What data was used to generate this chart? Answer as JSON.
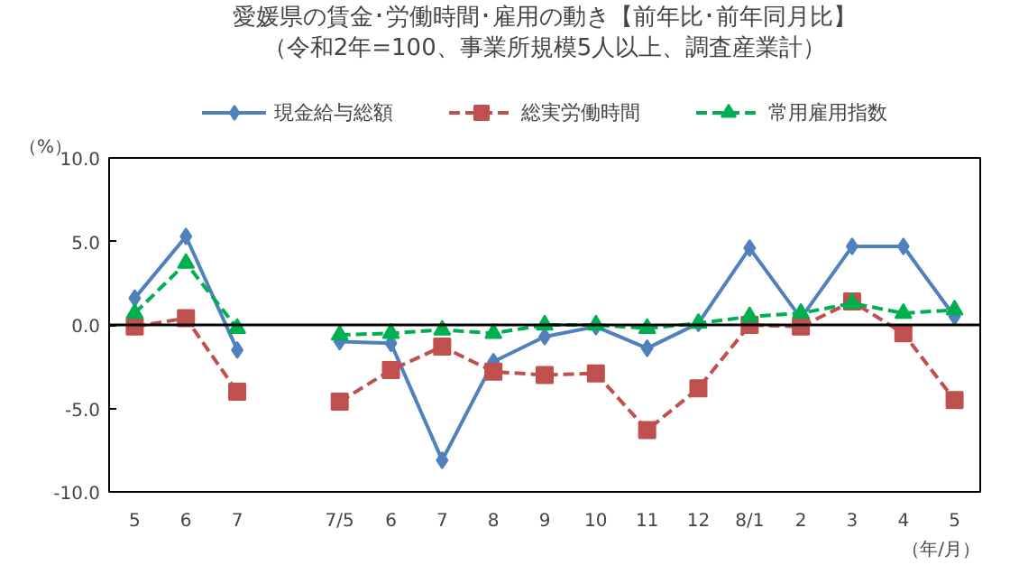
{
  "chart_data": {
    "type": "line",
    "title": "愛媛県の賃金･労働時間･雇用の動き【前年比･前年同月比】",
    "subtitle": "（令和2年=100、事業所規模5人以上、調査産業計）",
    "ylabel": "（%）",
    "xlabel": "（年/月）",
    "categories": [
      "5",
      "6",
      "7",
      null,
      "7/5",
      "6",
      "7",
      "8",
      "9",
      "10",
      "11",
      "12",
      "8/1",
      "2",
      "3",
      "4",
      "5"
    ],
    "series": [
      {
        "name": "現金給与総額",
        "color": "#4f81bd",
        "marker": "diamond",
        "line_style": "solid",
        "values": [
          1.6,
          5.3,
          -1.5,
          null,
          -1.0,
          -1.1,
          -8.1,
          -2.2,
          -0.7,
          -0.1,
          -1.4,
          0.1,
          4.6,
          0.4,
          4.7,
          4.7,
          0.5
        ]
      },
      {
        "name": "総実労働時間",
        "color": "#c0504d",
        "marker": "square",
        "line_style": "dashed",
        "values": [
          -0.1,
          0.4,
          -4.0,
          null,
          -4.6,
          -2.7,
          -1.3,
          -2.8,
          -3.0,
          -2.9,
          -6.3,
          -3.8,
          0.0,
          -0.1,
          1.4,
          -0.5,
          -4.5
        ]
      },
      {
        "name": "常用雇用指数",
        "color": "#00b050",
        "marker": "triangle",
        "line_style": "dashed",
        "values": [
          0.7,
          3.7,
          -0.2,
          null,
          -0.6,
          -0.5,
          -0.3,
          -0.5,
          0.0,
          0.0,
          -0.2,
          0.1,
          0.5,
          0.7,
          1.3,
          0.7,
          0.9
        ]
      }
    ],
    "ylim": [
      -10,
      10
    ],
    "yticks": [
      {
        "value": -10,
        "label": "-10.0"
      },
      {
        "value": -5,
        "label": "-5.0"
      },
      {
        "value": 0,
        "label": "0.0"
      },
      {
        "value": 5,
        "label": "5.0"
      },
      {
        "value": 10,
        "label": "10.0"
      }
    ],
    "ref_lines": [
      {
        "axis": "y",
        "value": 0,
        "color": "#000000",
        "line_style": "solid"
      }
    ],
    "grid": false,
    "legend": "top"
  }
}
